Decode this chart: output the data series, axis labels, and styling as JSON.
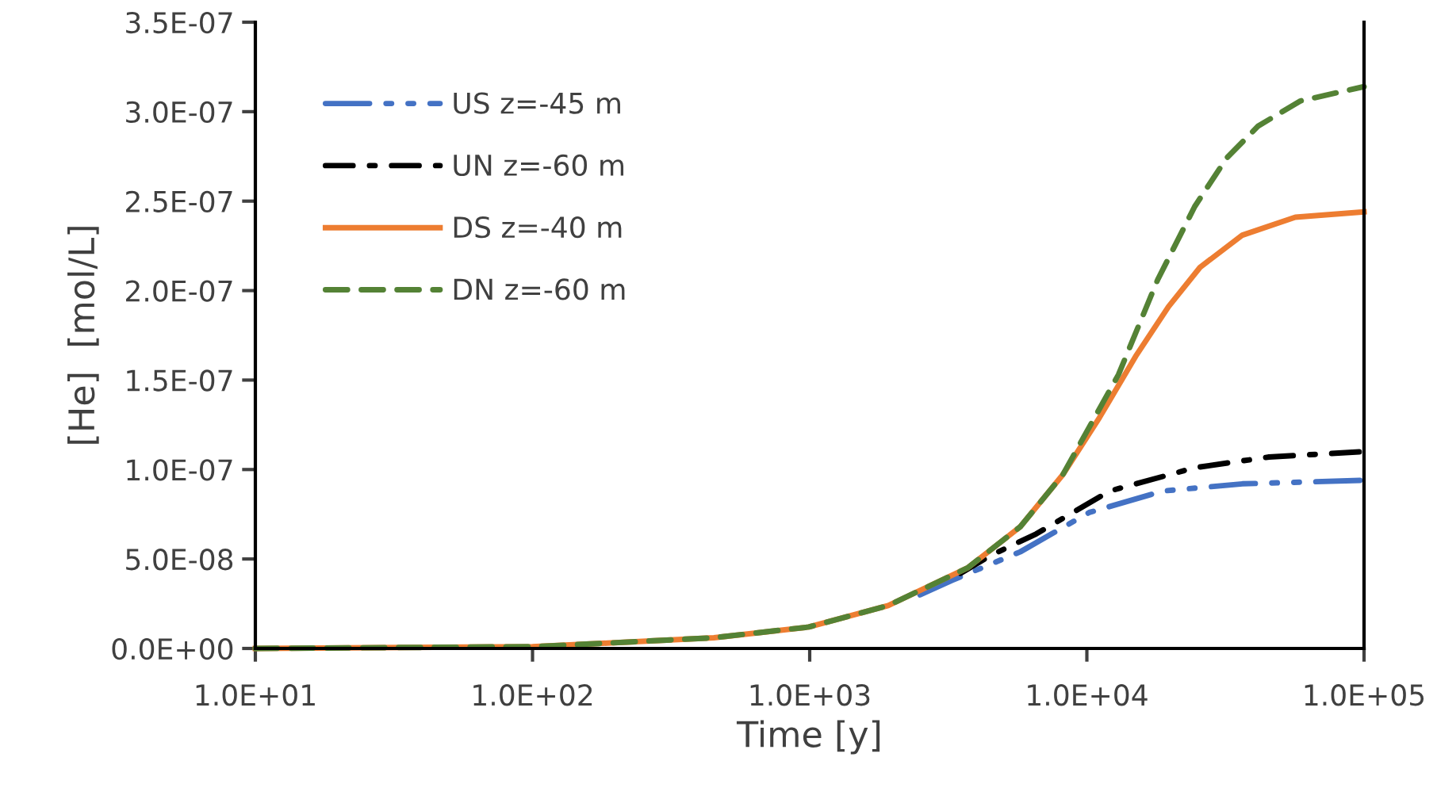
{
  "chart_data": {
    "type": "line",
    "xlabel": "Time [y]",
    "ylabel": "[He]  [mol/L]",
    "log": "x",
    "xlim": [
      10,
      100000
    ],
    "xticks": [
      {
        "value": 10,
        "label": "1.0E+01"
      },
      {
        "value": 100,
        "label": "1.0E+02"
      },
      {
        "value": 1000,
        "label": "1.0E+03"
      },
      {
        "value": 10000,
        "label": "1.0E+04"
      },
      {
        "value": 100000,
        "label": "1.0E+05"
      }
    ],
    "ylim": [
      0,
      3.5e-07
    ],
    "yticks": [
      {
        "value": 0,
        "label": "0.0E+00"
      },
      {
        "value": 5e-08,
        "label": "5.0E-08"
      },
      {
        "value": 1e-07,
        "label": "1.0E-07"
      },
      {
        "value": 1.5e-07,
        "label": "1.5E-07"
      },
      {
        "value": 2e-07,
        "label": "2.0E-07"
      },
      {
        "value": 2.5e-07,
        "label": "2.5E-07"
      },
      {
        "value": 3e-07,
        "label": "3.0E-07"
      },
      {
        "value": 3.5e-07,
        "label": "3.5E-07"
      }
    ],
    "grid": false,
    "legend": "top left",
    "marker": "none",
    "series": [
      {
        "name": "US z=-45 m",
        "color": "#4472c4",
        "line_style": "dashdotdot",
        "x": [
          2500,
          3250,
          5750,
          10200,
          18800,
          36400,
          100000
        ],
        "values": [
          3e-08,
          3.8e-08,
          5.4e-08,
          7.6e-08,
          8.8e-08,
          9.2e-08,
          9.4e-08
        ]
      },
      {
        "name": "UN z=-60 m",
        "color": "#000000",
        "line_style": "dashdot",
        "x": [
          3500,
          4500,
          6560,
          12100,
          24500,
          45400,
          100000
        ],
        "values": [
          4.2e-08,
          5.2e-08,
          6.4e-08,
          8.8e-08,
          1.01e-07,
          1.07e-07,
          1.1e-07
        ]
      },
      {
        "name": "DS z=-40 m",
        "color": "#ed7d31",
        "line_style": "solid",
        "x": [
          10,
          100,
          186,
          451,
          993,
          1920,
          3710,
          5750,
          8180,
          11100,
          15100,
          19700,
          25600,
          36400,
          56500,
          100000
        ],
        "values": [
          0,
          1e-09,
          3e-09,
          6e-09,
          1.2e-08,
          2.4e-08,
          4.5e-08,
          6.8e-08,
          9.7e-08,
          1.29e-07,
          1.64e-07,
          1.91e-07,
          2.13e-07,
          2.31e-07,
          2.41e-07,
          2.44e-07
        ]
      },
      {
        "name": "DN z=-60 m",
        "color": "#548235",
        "line_style": "dashed",
        "x": [
          10,
          100,
          186,
          451,
          993,
          1920,
          3710,
          5750,
          8180,
          13000,
          18000,
          24500,
          31900,
          41500,
          59000,
          100000
        ],
        "values": [
          0,
          1e-09,
          3e-09,
          6e-09,
          1.2e-08,
          2.4e-08,
          4.5e-08,
          6.8e-08,
          9.7e-08,
          1.53e-07,
          2.06e-07,
          2.47e-07,
          2.74e-07,
          2.92e-07,
          3.06e-07,
          3.14e-07
        ]
      }
    ]
  }
}
